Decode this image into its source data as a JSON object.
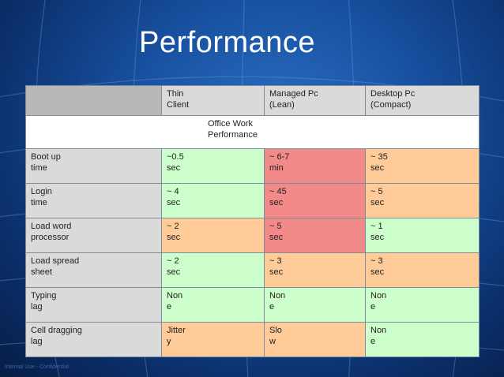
{
  "slide": {
    "title": "Performance",
    "footnote": "Internal Use - Confidential"
  },
  "colors": {
    "good": "#ccffcc",
    "bad": "#f28a8a",
    "medium": "#ffcc99",
    "label": "#dadada",
    "header_blank": "#b8b8b8"
  },
  "table": {
    "headers": [
      "",
      "Thin\nClient",
      "Managed Pc\n(Lean)",
      "Desktop Pc\n(Compact)"
    ],
    "section_label": "Office Work\nPerformance",
    "rows": [
      {
        "label": "Boot up\ntime",
        "cells": [
          {
            "text": "~0.5\nsec",
            "rating": "good"
          },
          {
            "text": "~ 6-7\nmin",
            "rating": "bad"
          },
          {
            "text": "~ 35\nsec",
            "rating": "medium"
          }
        ]
      },
      {
        "label": "Login\ntime",
        "cells": [
          {
            "text": "~ 4\nsec",
            "rating": "good"
          },
          {
            "text": "~ 45\nsec",
            "rating": "bad"
          },
          {
            "text": "~ 5\nsec",
            "rating": "medium"
          }
        ]
      },
      {
        "label": "Load word\nprocessor",
        "cells": [
          {
            "text": "~ 2\nsec",
            "rating": "medium"
          },
          {
            "text": "~ 5\nsec",
            "rating": "bad"
          },
          {
            "text": "~ 1\nsec",
            "rating": "good"
          }
        ]
      },
      {
        "label": "Load spread\nsheet",
        "cells": [
          {
            "text": "~ 2\nsec",
            "rating": "good"
          },
          {
            "text": "~ 3\nsec",
            "rating": "medium"
          },
          {
            "text": "~ 3\nsec",
            "rating": "medium"
          }
        ]
      },
      {
        "label": "Typing\nlag",
        "cells": [
          {
            "text": "Non\ne",
            "rating": "good"
          },
          {
            "text": "Non\ne",
            "rating": "good"
          },
          {
            "text": "Non\ne",
            "rating": "good"
          }
        ]
      },
      {
        "label": "Cell dragging\nlag",
        "cells": [
          {
            "text": "Jitter\ny",
            "rating": "medium"
          },
          {
            "text": "Slo\nw",
            "rating": "medium"
          },
          {
            "text": "Non\ne",
            "rating": "good"
          }
        ]
      }
    ]
  }
}
